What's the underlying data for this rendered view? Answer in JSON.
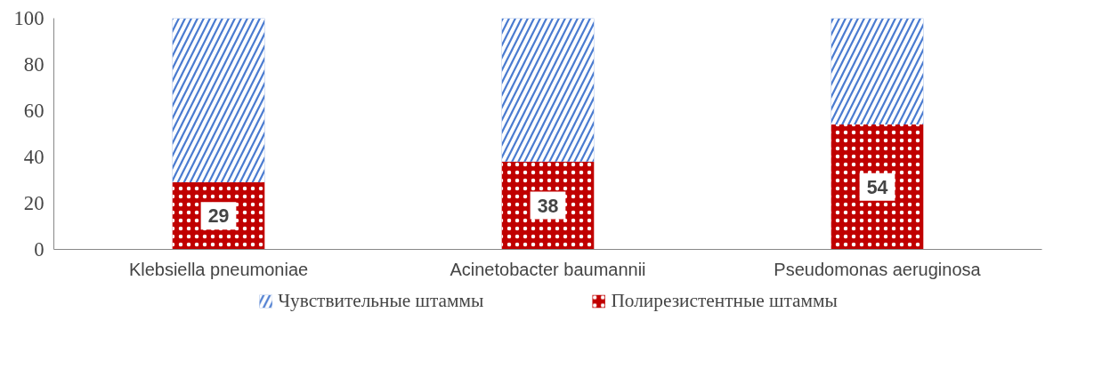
{
  "chart_data": {
    "type": "bar",
    "stacked": true,
    "categories": [
      "Klebsiella pneumoniae",
      "Acinetobacter baumannii",
      "Pseudomonas aeruginosa"
    ],
    "series": [
      {
        "name": "Полирезистентные штаммы",
        "color": "#c00000",
        "values": [
          29,
          38,
          54
        ],
        "value_labels": [
          "29",
          "38",
          "54"
        ]
      },
      {
        "name": "Чувствительные штаммы",
        "color": "#4a7bd0",
        "values": [
          71,
          62,
          46
        ]
      }
    ],
    "ylim": [
      0,
      100
    ],
    "yticks": [
      0,
      20,
      40,
      60,
      80,
      100
    ],
    "grid": false,
    "legend": "bottom"
  }
}
